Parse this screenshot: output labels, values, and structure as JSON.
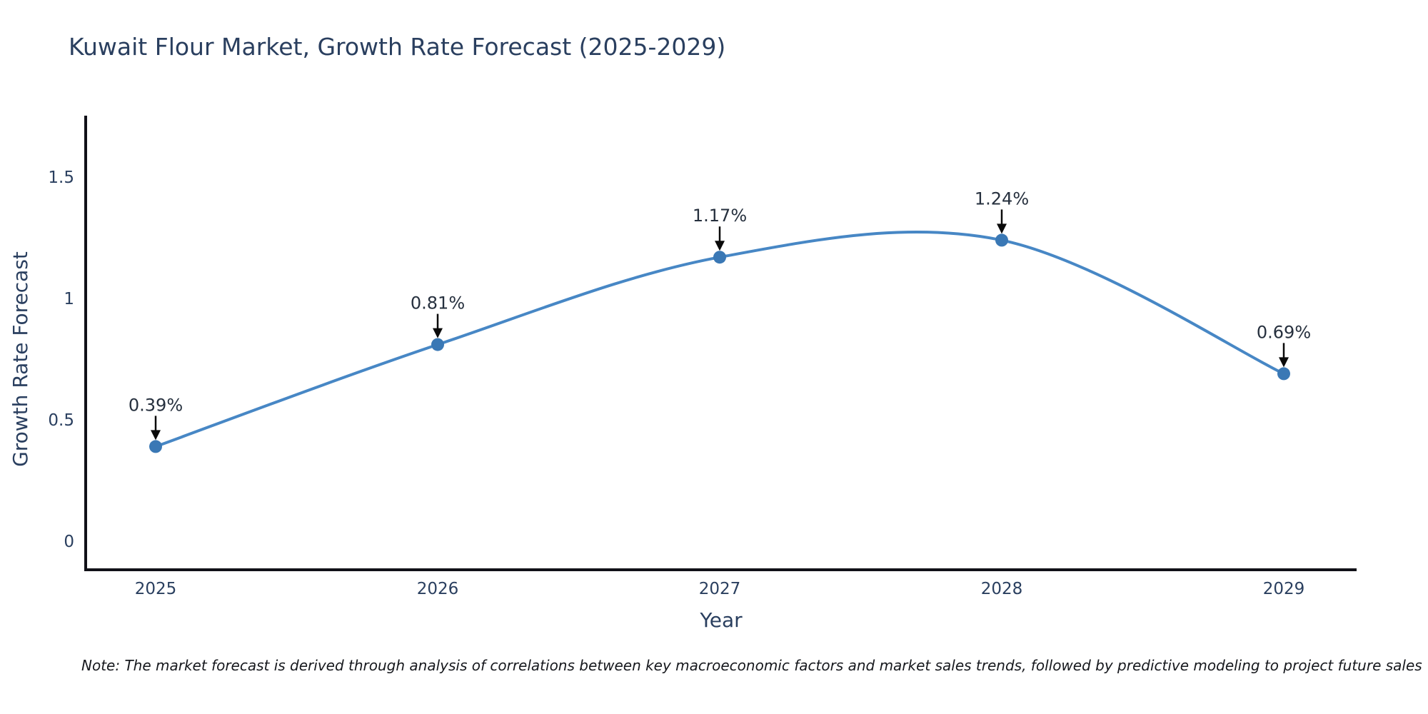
{
  "title": "Kuwait Flour Market, Growth Rate Forecast (2025-2029)",
  "note": "Note: The market forecast is derived through analysis of correlations between key macroeconomic factors and market sales trends, followed by predictive modeling to project future sales",
  "chart_data": {
    "type": "line",
    "title": "Kuwait Flour Market, Growth Rate Forecast (2025-2029)",
    "xlabel": "Year",
    "ylabel": "Growth Rate Forecast",
    "categories": [
      "2025",
      "2026",
      "2027",
      "2028",
      "2029"
    ],
    "values": [
      0.39,
      0.81,
      1.17,
      1.24,
      0.69
    ],
    "point_labels": [
      "0.39%",
      "0.81%",
      "1.17%",
      "1.24%",
      "0.69%"
    ],
    "yticks": [
      0,
      0.5,
      1,
      1.5
    ],
    "ytick_labels": [
      "0",
      "0.5",
      "1",
      "1.5"
    ],
    "ylim": [
      -0.12,
      1.76
    ],
    "line_shape": "spline",
    "grid": false,
    "legend_position": "none",
    "colors": {
      "line": "#4787c5",
      "marker": "#3a78b5",
      "axis": "#111118",
      "annotation_arrow": "#0a0a0a",
      "text": "#2a3f5f"
    }
  }
}
